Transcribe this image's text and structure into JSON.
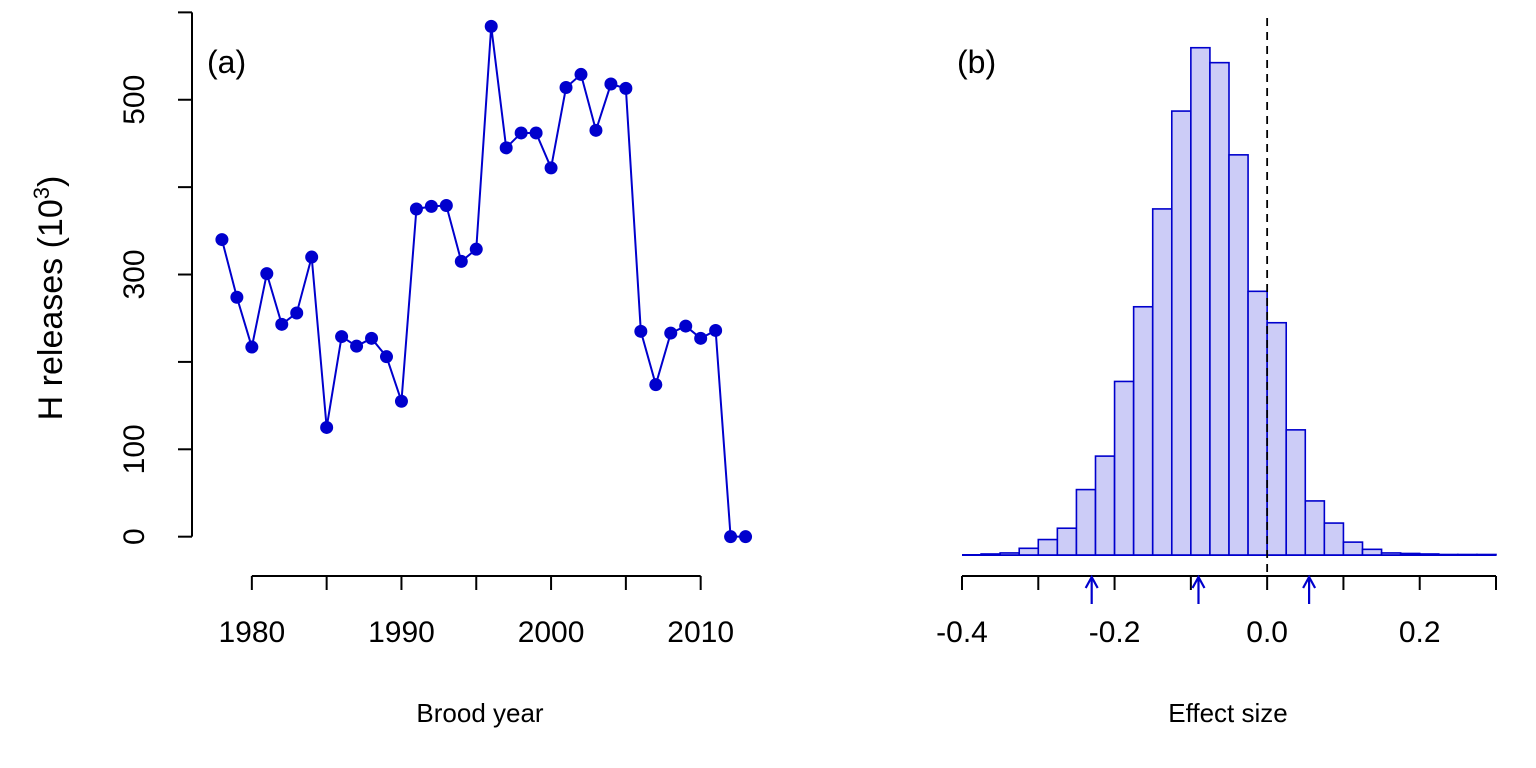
{
  "chart_data": [
    {
      "type": "line",
      "panel_label": "(a)",
      "xlabel": "Brood year",
      "ylabel_main": "H releases (10",
      "ylabel_sup": "3",
      "ylabel_close": ")",
      "xlim": [
        1976,
        2014.5
      ],
      "ylim": [
        -45,
        605
      ],
      "xticks": [
        1980,
        1985,
        1990,
        1995,
        2000,
        2005,
        2010
      ],
      "xtick_labels": [
        "1980",
        "",
        "1990",
        "",
        "2000",
        "",
        "2010"
      ],
      "yticks": [
        0,
        100,
        200,
        300,
        400,
        500,
        600
      ],
      "ytick_labels": [
        "0",
        "100",
        "",
        "300",
        "",
        "500",
        ""
      ],
      "color": "#0000CD",
      "series": [
        {
          "x": [
            1978,
            1979,
            1980,
            1981,
            1982,
            1983,
            1984,
            1985,
            1986,
            1987,
            1988,
            1989,
            1990,
            1991,
            1992,
            1993,
            1994,
            1995,
            1996,
            1997,
            1998,
            1999,
            2000,
            2001,
            2002,
            2003,
            2004,
            2005,
            2006,
            2007,
            2008,
            2009,
            2010,
            2011,
            2012,
            2013
          ],
          "y": [
            340,
            274,
            217,
            301,
            243,
            256,
            320,
            125,
            229,
            218,
            227,
            206,
            155,
            375,
            378,
            379,
            315,
            329,
            584,
            445,
            462,
            462,
            422,
            514,
            529,
            465,
            518,
            513,
            235,
            174,
            233,
            241,
            227,
            236,
            0,
            0
          ]
        }
      ]
    },
    {
      "type": "histogram",
      "panel_label": "(b)",
      "xlabel": "Effect size",
      "xlim": [
        -0.4,
        0.3
      ],
      "xticks": [
        -0.4,
        -0.3,
        -0.2,
        -0.1,
        0.0,
        0.1,
        0.2,
        0.3
      ],
      "xtick_labels": [
        "-0.4",
        "",
        "-0.2",
        "",
        "0.0",
        "",
        "0.2",
        ""
      ],
      "bin_width": 0.025,
      "bin_starts": [
        -0.375,
        -0.35,
        -0.325,
        -0.3,
        -0.275,
        -0.25,
        -0.225,
        -0.2,
        -0.175,
        -0.15,
        -0.125,
        -0.1,
        -0.075,
        -0.05,
        -0.025,
        0.0,
        0.025,
        0.05,
        0.075,
        0.1,
        0.125,
        0.15,
        0.175,
        0.2,
        0.225,
        0.25,
        0.275
      ],
      "counts": [
        2,
        4,
        13,
        30,
        52,
        127,
        192,
        337,
        482,
        672,
        862,
        985,
        956,
        777,
        512,
        451,
        243,
        105,
        62,
        25,
        11,
        4,
        3,
        2,
        1,
        1,
        1
      ],
      "ylim_max": 1000,
      "reference_line_x": 0.0,
      "arrows_x": [
        -0.23,
        -0.09,
        0.055
      ],
      "bar_fill": "#CCCCF7",
      "bar_stroke": "#0000CD"
    }
  ]
}
